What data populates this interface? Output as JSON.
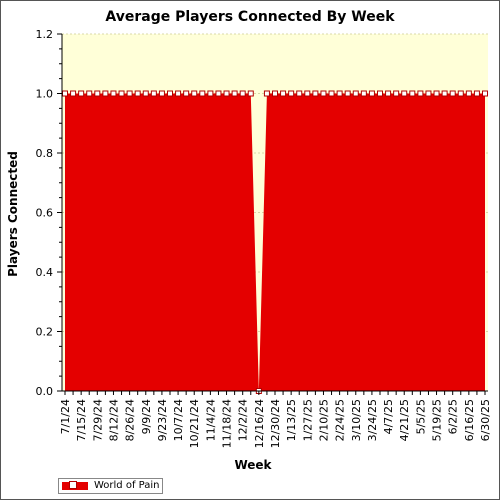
{
  "colors": {
    "plot_background": "#ffffd8",
    "series_fill": "#e40000",
    "series_marker_fill": "#ffffff",
    "series_marker_stroke": "#b00000",
    "grid": "#d8d8a8"
  },
  "chart_data": {
    "type": "area",
    "title": "Average Players Connected By Week",
    "xlabel": "Week",
    "ylabel": "Players Connected",
    "ylim": [
      0,
      1.2
    ],
    "yticks": [
      "0.0",
      "0.2",
      "0.4",
      "0.6",
      "0.8",
      "1.0",
      "1.2"
    ],
    "grid": "dotted",
    "legend_position": "bottom-left",
    "x": [
      "7/1/24",
      "7/8/24",
      "7/15/24",
      "7/22/24",
      "7/29/24",
      "8/5/24",
      "8/12/24",
      "8/19/24",
      "8/26/24",
      "9/2/24",
      "9/9/24",
      "9/16/24",
      "9/23/24",
      "9/30/24",
      "10/7/24",
      "10/14/24",
      "10/21/24",
      "10/28/24",
      "11/4/24",
      "11/11/24",
      "11/18/24",
      "11/25/24",
      "12/2/24",
      "12/9/24",
      "12/16/24",
      "12/23/24",
      "12/30/24",
      "1/6/25",
      "1/13/25",
      "1/20/25",
      "1/27/25",
      "2/3/25",
      "2/10/25",
      "2/17/25",
      "2/24/25",
      "3/3/25",
      "3/10/25",
      "3/17/25",
      "3/24/25",
      "3/31/25",
      "4/7/25",
      "4/14/25",
      "4/21/25",
      "4/28/25",
      "5/5/25",
      "5/12/25",
      "5/19/25",
      "5/26/25",
      "6/2/25",
      "6/9/25",
      "6/16/25",
      "6/23/25",
      "6/30/25"
    ],
    "x_tick_labels": [
      "7/1/24",
      "7/15/24",
      "7/29/24",
      "8/12/24",
      "8/26/24",
      "9/9/24",
      "9/23/24",
      "10/7/24",
      "10/21/24",
      "11/4/24",
      "11/18/24",
      "12/2/24",
      "12/16/24",
      "12/30/24",
      "1/13/25",
      "1/27/25",
      "2/10/25",
      "2/24/25",
      "3/10/25",
      "3/24/25",
      "4/7/25",
      "4/21/25",
      "5/5/25",
      "5/19/25",
      "6/2/25",
      "6/16/25",
      "6/30/25"
    ],
    "series": [
      {
        "name": "World of Pain",
        "values": [
          1,
          1,
          1,
          1,
          1,
          1,
          1,
          1,
          1,
          1,
          1,
          1,
          1,
          1,
          1,
          1,
          1,
          1,
          1,
          1,
          1,
          1,
          1,
          1,
          0,
          1,
          1,
          1,
          1,
          1,
          1,
          1,
          1,
          1,
          1,
          1,
          1,
          1,
          1,
          1,
          1,
          1,
          1,
          1,
          1,
          1,
          1,
          1,
          1,
          1,
          1,
          1,
          1
        ]
      }
    ]
  }
}
